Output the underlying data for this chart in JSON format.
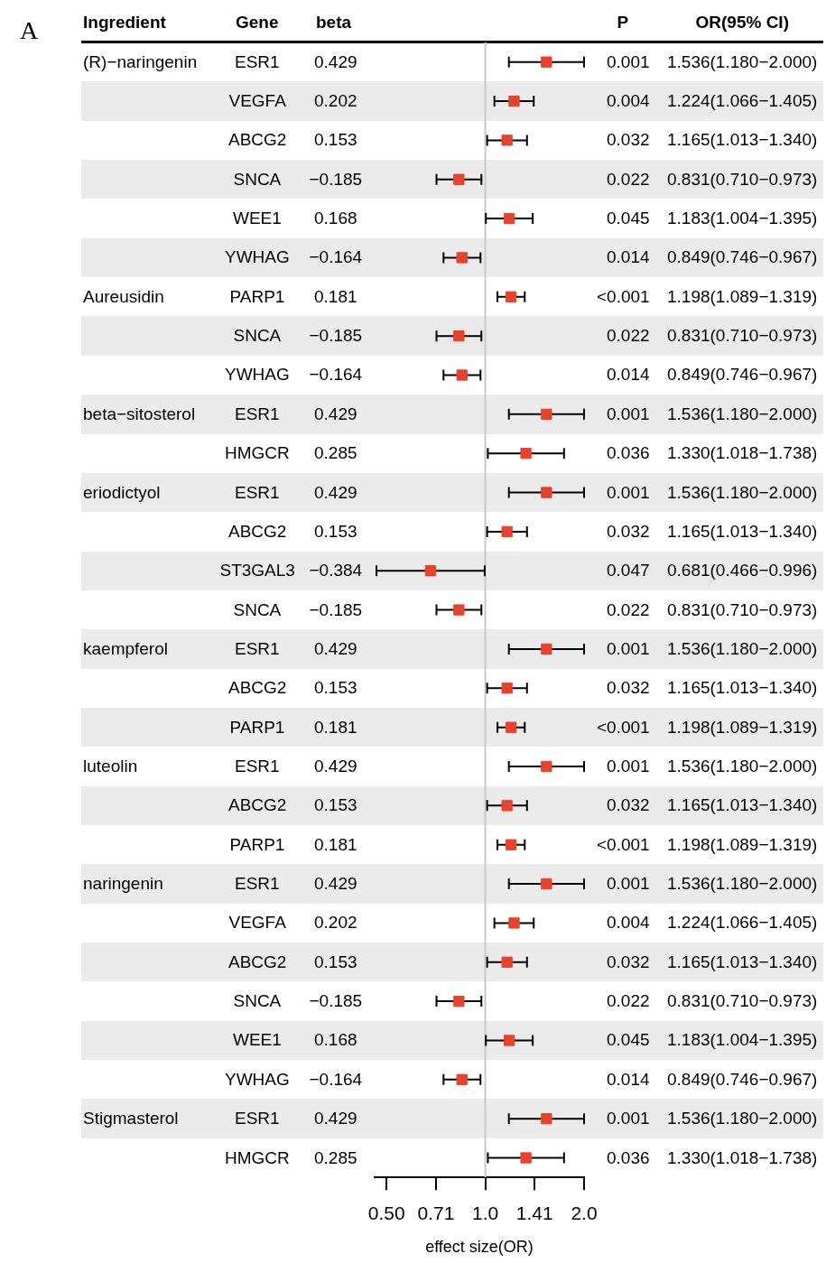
{
  "chart_data": [
    {
      "type": "scatter",
      "orientation": "horizontal",
      "log": "x",
      "marker": "square",
      "legend": false,
      "grid": false,
      "xlabel": "effect size(OR)",
      "xlim": [
        0.46,
        2.0
      ],
      "xticks": [
        {
          "value": 0.5,
          "label": "0.50"
        },
        {
          "value": 0.7071,
          "label": "0.71"
        },
        {
          "value": 1,
          "label": "1.0"
        },
        {
          "value": 1.4142,
          "label": "1.41"
        },
        {
          "value": 2,
          "label": "2.0"
        }
      ],
      "ref_lines": [
        {
          "axis": "x",
          "value": 1,
          "color": "#c8c8c8"
        }
      ],
      "categories": [
        null,
        null,
        null,
        null,
        null,
        null,
        null,
        null,
        null,
        null,
        null,
        null,
        null,
        null,
        null,
        null,
        null,
        null,
        null,
        null,
        null,
        null,
        null,
        null,
        null,
        null,
        null,
        null,
        null
      ],
      "color": "#e8412c",
      "values": [
        1.536,
        1.224,
        1.165,
        0.831,
        1.183,
        0.849,
        1.198,
        0.831,
        0.849,
        1.536,
        1.33,
        1.536,
        1.165,
        0.681,
        0.831,
        1.536,
        1.165,
        1.198,
        1.536,
        1.165,
        1.198,
        1.536,
        1.224,
        1.165,
        0.831,
        1.183,
        0.849,
        1.536,
        1.33
      ],
      "errors": [
        [
          1.18,
          2.0
        ],
        [
          1.066,
          1.405
        ],
        [
          1.013,
          1.34
        ],
        [
          0.71,
          0.973
        ],
        [
          1.004,
          1.395
        ],
        [
          0.746,
          0.967
        ],
        [
          1.089,
          1.319
        ],
        [
          0.71,
          0.973
        ],
        [
          0.746,
          0.967
        ],
        [
          1.18,
          2.0
        ],
        [
          1.018,
          1.738
        ],
        [
          1.18,
          2.0
        ],
        [
          1.013,
          1.34
        ],
        [
          0.466,
          0.996
        ],
        [
          0.71,
          0.973
        ],
        [
          1.18,
          2.0
        ],
        [
          1.013,
          1.34
        ],
        [
          1.089,
          1.319
        ],
        [
          1.18,
          2.0
        ],
        [
          1.013,
          1.34
        ],
        [
          1.089,
          1.319
        ],
        [
          1.18,
          2.0
        ],
        [
          1.066,
          1.405
        ],
        [
          1.013,
          1.34
        ],
        [
          0.71,
          0.973
        ],
        [
          1.004,
          1.395
        ],
        [
          0.746,
          0.967
        ],
        [
          1.18,
          2.0
        ],
        [
          1.018,
          1.738
        ]
      ]
    },
    {
      "type": "other",
      "annotations": [
        "A"
      ],
      "categories": [
        "Ingredient",
        "Gene",
        "beta",
        "P",
        "OR(95% CI)"
      ],
      "cell_labels": [
        [
          "(R)−naringenin",
          "ESR1",
          "0.429",
          "0.001",
          "1.536(1.180−2.000)"
        ],
        [
          null,
          "VEGFA",
          "0.202",
          "0.004",
          "1.224(1.066−1.405)"
        ],
        [
          null,
          "ABCG2",
          "0.153",
          "0.032",
          "1.165(1.013−1.340)"
        ],
        [
          null,
          "SNCA",
          "−0.185",
          "0.022",
          "0.831(0.710−0.973)"
        ],
        [
          null,
          "WEE1",
          "0.168",
          "0.045",
          "1.183(1.004−1.395)"
        ],
        [
          null,
          "YWHAG",
          "−0.164",
          "0.014",
          "0.849(0.746−0.967)"
        ],
        [
          "Aureusidin",
          "PARP1",
          "0.181",
          "<0.001",
          "1.198(1.089−1.319)"
        ],
        [
          null,
          "SNCA",
          "−0.185",
          "0.022",
          "0.831(0.710−0.973)"
        ],
        [
          null,
          "YWHAG",
          "−0.164",
          "0.014",
          "0.849(0.746−0.967)"
        ],
        [
          "beta−sitosterol",
          "ESR1",
          "0.429",
          "0.001",
          "1.536(1.180−2.000)"
        ],
        [
          null,
          "HMGCR",
          "0.285",
          "0.036",
          "1.330(1.018−1.738)"
        ],
        [
          "eriodictyol",
          "ESR1",
          "0.429",
          "0.001",
          "1.536(1.180−2.000)"
        ],
        [
          null,
          "ABCG2",
          "0.153",
          "0.032",
          "1.165(1.013−1.340)"
        ],
        [
          null,
          "ST3GAL3",
          "−0.384",
          "0.047",
          "0.681(0.466−0.996)"
        ],
        [
          null,
          "SNCA",
          "−0.185",
          "0.022",
          "0.831(0.710−0.973)"
        ],
        [
          "kaempferol",
          "ESR1",
          "0.429",
          "0.001",
          "1.536(1.180−2.000)"
        ],
        [
          null,
          "ABCG2",
          "0.153",
          "0.032",
          "1.165(1.013−1.340)"
        ],
        [
          null,
          "PARP1",
          "0.181",
          "<0.001",
          "1.198(1.089−1.319)"
        ],
        [
          "luteolin",
          "ESR1",
          "0.429",
          "0.001",
          "1.536(1.180−2.000)"
        ],
        [
          null,
          "ABCG2",
          "0.153",
          "0.032",
          "1.165(1.013−1.340)"
        ],
        [
          null,
          "PARP1",
          "0.181",
          "<0.001",
          "1.198(1.089−1.319)"
        ],
        [
          "naringenin",
          "ESR1",
          "0.429",
          "0.001",
          "1.536(1.180−2.000)"
        ],
        [
          null,
          "VEGFA",
          "0.202",
          "0.004",
          "1.224(1.066−1.405)"
        ],
        [
          null,
          "ABCG2",
          "0.153",
          "0.032",
          "1.165(1.013−1.340)"
        ],
        [
          null,
          "SNCA",
          "−0.185",
          "0.022",
          "0.831(0.710−0.973)"
        ],
        [
          null,
          "WEE1",
          "0.168",
          "0.045",
          "1.183(1.004−1.395)"
        ],
        [
          null,
          "YWHAG",
          "−0.164",
          "0.014",
          "0.849(0.746−0.967)"
        ],
        [
          "Stigmasterol",
          "ESR1",
          "0.429",
          "0.001",
          "1.536(1.180−2.000)"
        ],
        [
          null,
          "HMGCR",
          "0.285",
          "0.036",
          "1.330(1.018−1.738)"
        ]
      ]
    }
  ]
}
